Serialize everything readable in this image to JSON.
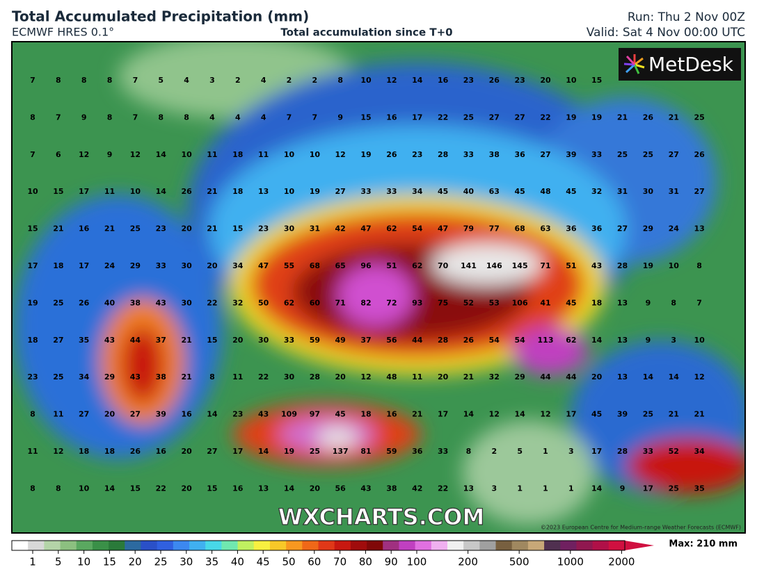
{
  "header": {
    "title": "Total Accumulated Precipitation (mm)",
    "model": "ECMWF HRES 0.1°",
    "subtitle": "Total accumulation since T+0",
    "run": "Run: Thu 2 Nov 00Z",
    "valid": "Valid: Sat 4 Nov 00:00 UTC"
  },
  "map": {
    "logo": "MetDesk",
    "watermark": "WXCHARTS.COM",
    "copyright": "©2023 European Centre for Medium-range Weather Forecasts (ECMWF)",
    "grid": [
      [
        7,
        8,
        8,
        8,
        7,
        5,
        4,
        3,
        2,
        4,
        2,
        2,
        8,
        10,
        12,
        14,
        16,
        23,
        26,
        23,
        20,
        10,
        15,
        null,
        null,
        null,
        null
      ],
      [
        8,
        7,
        9,
        8,
        7,
        8,
        8,
        4,
        4,
        4,
        7,
        7,
        9,
        15,
        16,
        17,
        22,
        25,
        27,
        27,
        22,
        19,
        19,
        21,
        26,
        21,
        25
      ],
      [
        7,
        6,
        12,
        9,
        12,
        14,
        10,
        11,
        18,
        11,
        10,
        10,
        12,
        19,
        26,
        23,
        28,
        33,
        38,
        36,
        27,
        39,
        33,
        25,
        25,
        27,
        26
      ],
      [
        10,
        15,
        17,
        11,
        10,
        14,
        26,
        21,
        18,
        13,
        10,
        19,
        27,
        33,
        33,
        34,
        45,
        40,
        63,
        45,
        48,
        45,
        32,
        31,
        30,
        31,
        27
      ],
      [
        15,
        21,
        16,
        21,
        25,
        23,
        20,
        21,
        15,
        23,
        30,
        31,
        42,
        47,
        62,
        54,
        47,
        79,
        77,
        68,
        63,
        36,
        36,
        27,
        29,
        24,
        13
      ],
      [
        17,
        18,
        17,
        24,
        29,
        33,
        30,
        20,
        34,
        47,
        55,
        68,
        65,
        96,
        51,
        62,
        70,
        141,
        146,
        145,
        71,
        51,
        43,
        28,
        19,
        10,
        8
      ],
      [
        19,
        25,
        26,
        40,
        38,
        43,
        30,
        22,
        32,
        50,
        62,
        60,
        71,
        82,
        72,
        93,
        75,
        52,
        53,
        106,
        41,
        45,
        18,
        13,
        9,
        8,
        7
      ],
      [
        18,
        27,
        35,
        43,
        44,
        37,
        21,
        15,
        20,
        30,
        33,
        59,
        49,
        37,
        56,
        44,
        28,
        26,
        54,
        54,
        113,
        62,
        14,
        13,
        9,
        3,
        10
      ],
      [
        23,
        25,
        34,
        29,
        43,
        38,
        21,
        8,
        11,
        22,
        30,
        28,
        20,
        12,
        48,
        11,
        20,
        21,
        32,
        29,
        44,
        44,
        20,
        13,
        14,
        14,
        12
      ],
      [
        8,
        11,
        27,
        20,
        27,
        39,
        16,
        14,
        23,
        43,
        109,
        97,
        45,
        18,
        16,
        21,
        17,
        14,
        12,
        14,
        12,
        17,
        45,
        39,
        25,
        21,
        21
      ],
      [
        11,
        12,
        18,
        18,
        26,
        16,
        20,
        27,
        17,
        14,
        19,
        25,
        137,
        81,
        59,
        36,
        33,
        8,
        2,
        5,
        1,
        3,
        17,
        28,
        33,
        52,
        34
      ],
      [
        8,
        8,
        10,
        14,
        15,
        22,
        20,
        15,
        16,
        13,
        14,
        20,
        56,
        43,
        38,
        42,
        22,
        13,
        3,
        1,
        1,
        1,
        14,
        9,
        17,
        25,
        35
      ]
    ]
  },
  "colorbar": {
    "ticks": [
      1,
      5,
      10,
      15,
      20,
      25,
      30,
      35,
      40,
      45,
      50,
      60,
      70,
      80,
      90,
      100,
      200,
      500,
      1000,
      2000
    ],
    "max": "Max: 210 mm",
    "colors": [
      "#ffffff",
      "#d8d8d8",
      "#b4d4a8",
      "#8cc080",
      "#5aa860",
      "#3a9048",
      "#2a7a3a",
      "#2c6aa0",
      "#2a50c8",
      "#3060e0",
      "#3c88f0",
      "#40b0f0",
      "#48d8e8",
      "#70e8b0",
      "#c0f060",
      "#f8f040",
      "#f8c828",
      "#f89820",
      "#f06818",
      "#e03818",
      "#c81810",
      "#a00c0c",
      "#800808",
      "#a03080",
      "#c040c0",
      "#e070e0",
      "#f0b0f0",
      "#f0f0f0",
      "#c8c8c8",
      "#a0a0a0",
      "#786040",
      "#a08860",
      "#c8a878",
      "#503050",
      "#702060",
      "#901850",
      "#b01048",
      "#d01040"
    ]
  }
}
